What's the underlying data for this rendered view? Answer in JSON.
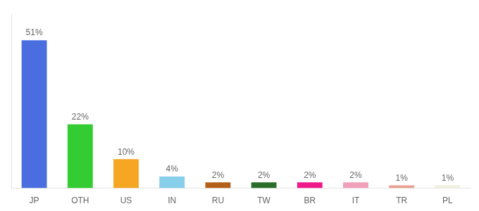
{
  "chart_data": {
    "type": "bar",
    "categories": [
      "JP",
      "OTH",
      "US",
      "IN",
      "RU",
      "TW",
      "BR",
      "IT",
      "TR",
      "PL"
    ],
    "values": [
      51,
      22,
      10,
      4,
      2,
      2,
      2,
      2,
      1,
      1
    ],
    "value_labels": [
      "51%",
      "22%",
      "10%",
      "4%",
      "2%",
      "2%",
      "2%",
      "2%",
      "1%",
      "1%"
    ],
    "data_labels": true,
    "colors": [
      "#4a6ee0",
      "#33cc33",
      "#f5a623",
      "#87ceeb",
      "#b5601a",
      "#2a6e2a",
      "#ee1a8a",
      "#f0a0b8",
      "#e8a090",
      "#f0eedc"
    ],
    "ylim": [
      0,
      60
    ],
    "yticks": [],
    "tick_labels": "x",
    "grid": false
  }
}
